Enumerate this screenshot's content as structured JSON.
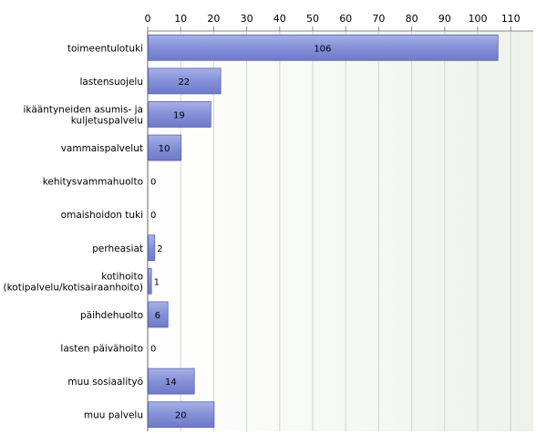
{
  "chart_data": {
    "type": "bar",
    "orientation": "horizontal",
    "title": "",
    "xlabel": "",
    "ylabel": "",
    "xlim": [
      0,
      116
    ],
    "x_ticks": [
      0,
      10,
      20,
      30,
      40,
      50,
      60,
      70,
      80,
      90,
      100,
      110
    ],
    "x_axis_position": "top",
    "grid": true,
    "legend": "none",
    "colors": {
      "bar_fill": "#8390d8",
      "bar_stroke": "#5a64a8",
      "plot_bg": "#eef2ea",
      "grid": "#d2d6cc",
      "text": "#000000"
    },
    "categories": [
      [
        "toimeentulotuki"
      ],
      [
        "lastensuojelu"
      ],
      [
        "ikääntyneiden asumis- ja",
        "kuljetuspalvelu"
      ],
      [
        "vammaispalvelut"
      ],
      [
        "kehitysvammahuolto"
      ],
      [
        "omaishoidon tuki"
      ],
      [
        "perheasiat"
      ],
      [
        "kotihoito",
        "(kotipalvelu/kotisairaanhoito)"
      ],
      [
        "päihdehuolto"
      ],
      [
        "lasten päivähoito"
      ],
      [
        "muu sosiaalityö"
      ],
      [
        "muu palvelu"
      ]
    ],
    "values": [
      106,
      22,
      19,
      10,
      0,
      0,
      2,
      1,
      6,
      0,
      14,
      20
    ]
  }
}
